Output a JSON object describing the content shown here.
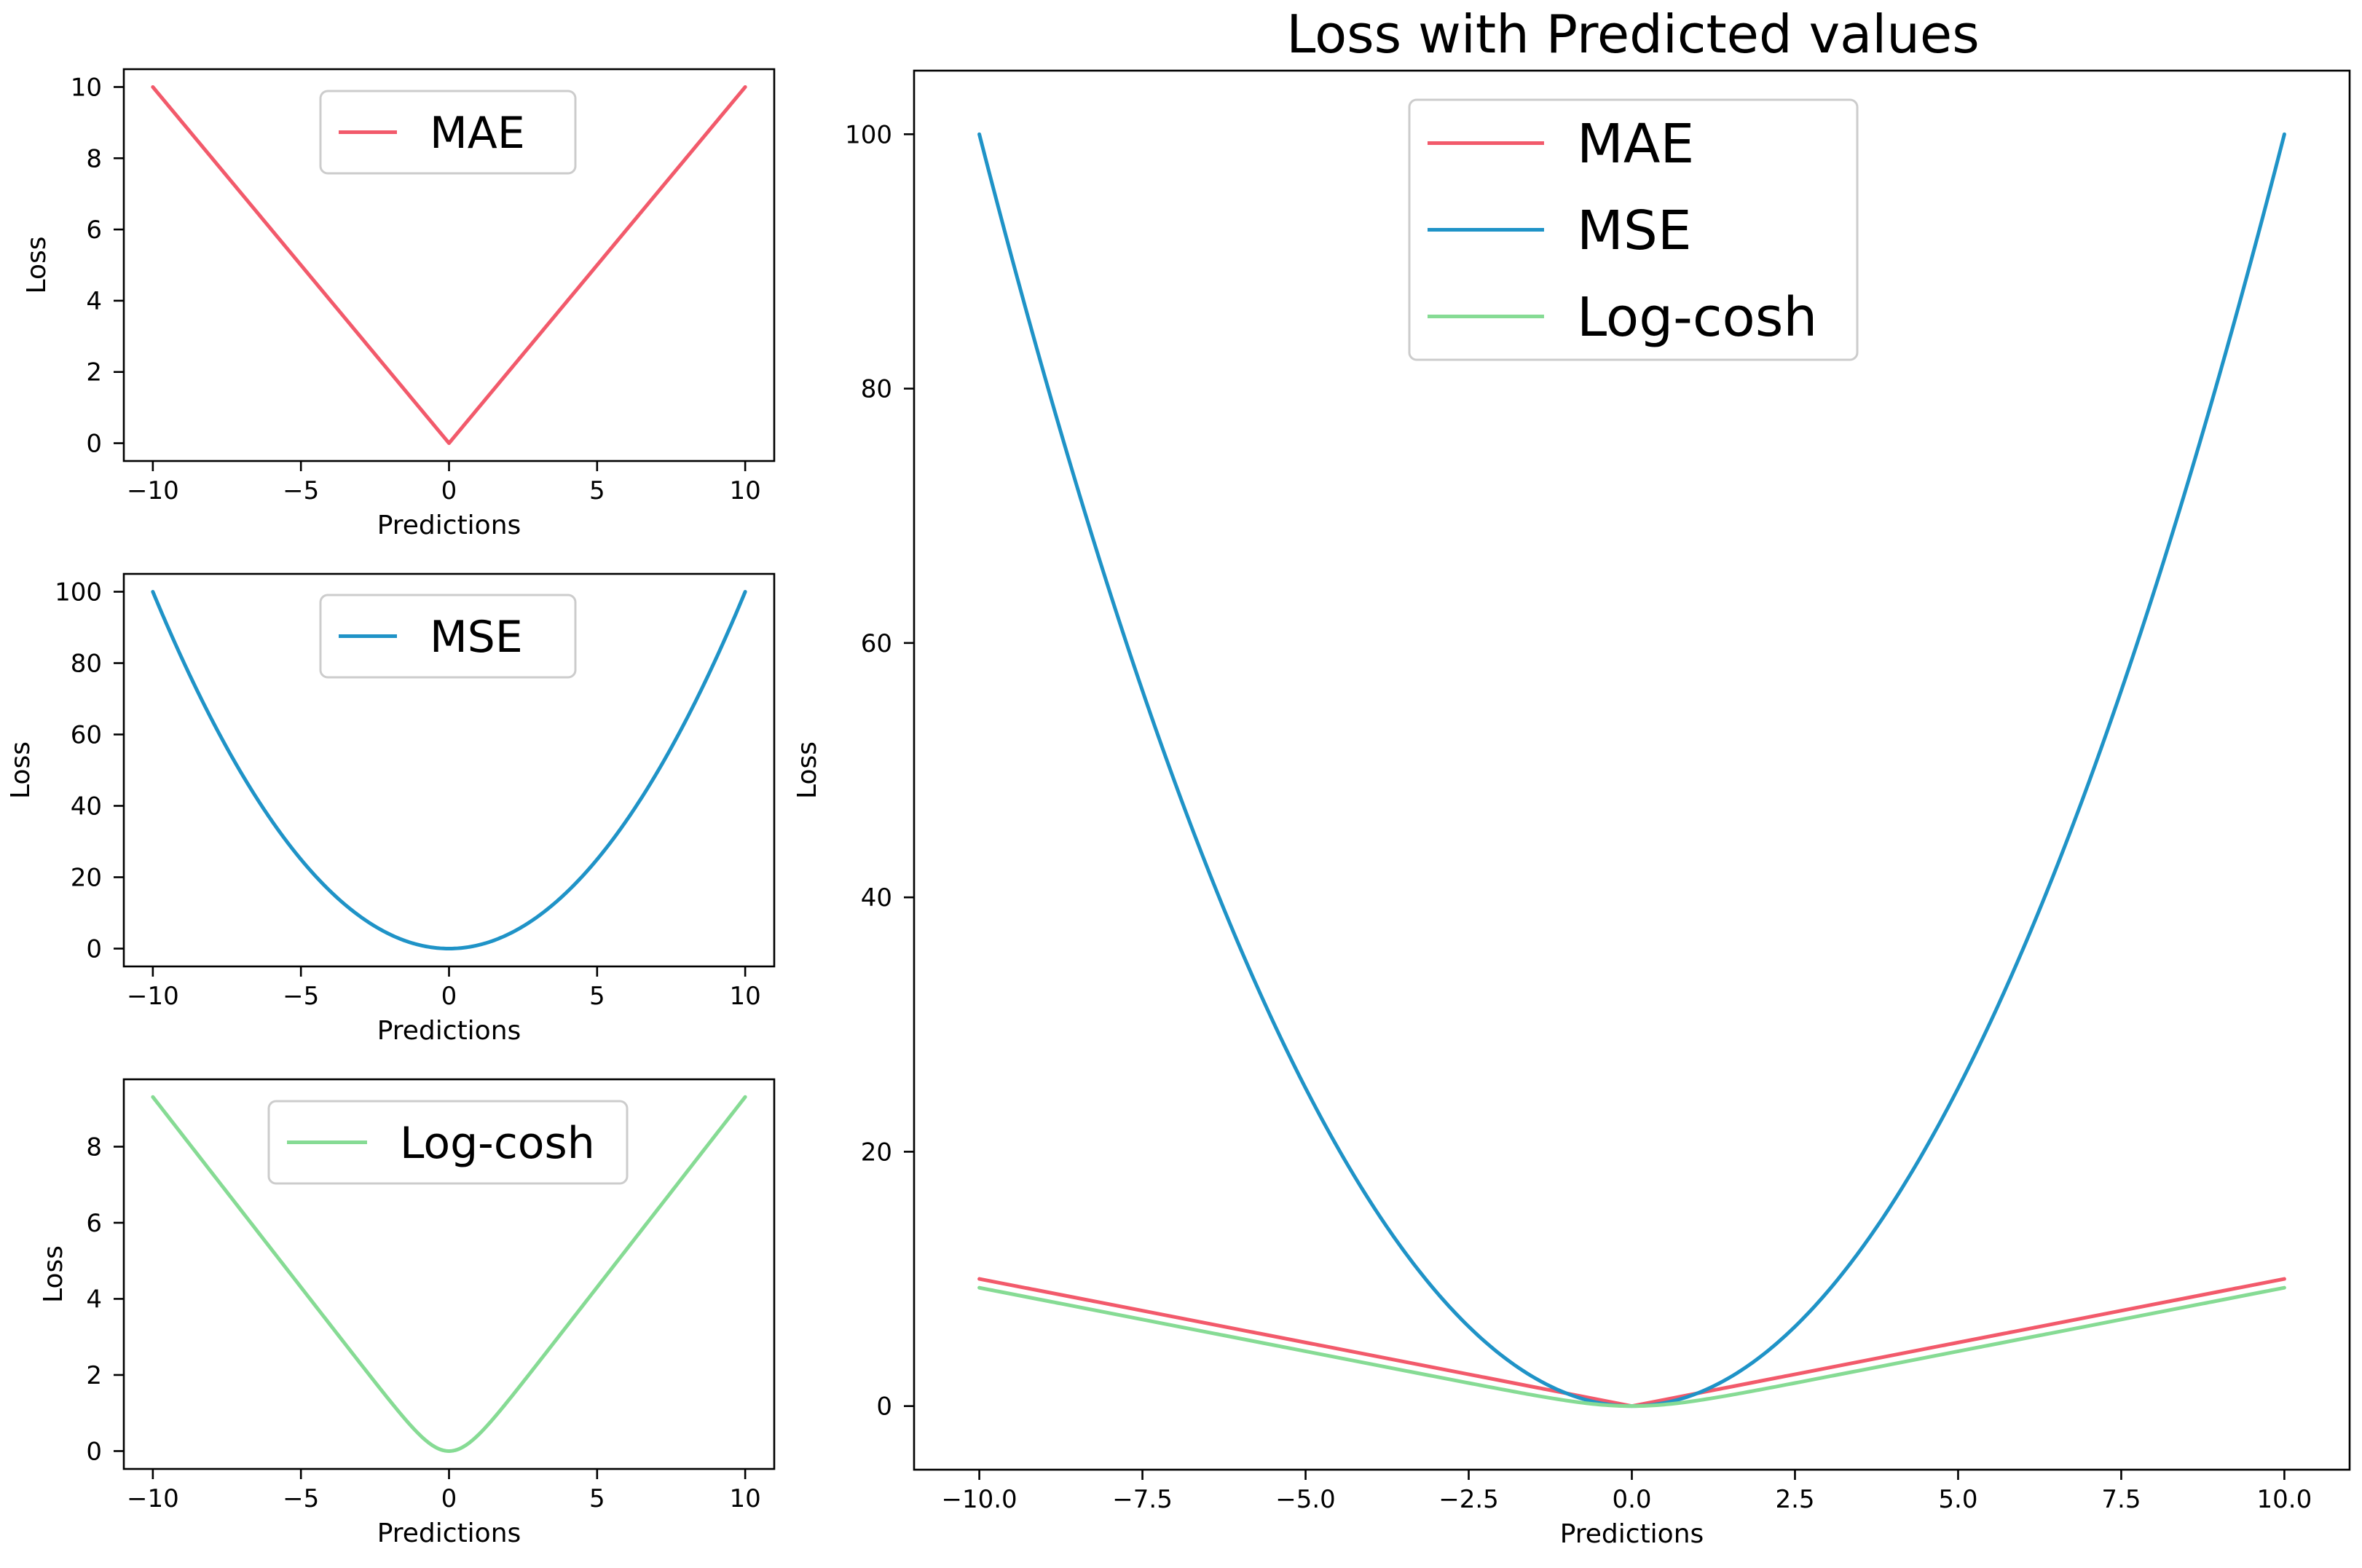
{
  "colors": {
    "mae": "#f25a6b",
    "mse": "#1f93c7",
    "logcosh": "#86db94"
  },
  "chart_data": [
    {
      "type": "line",
      "title": "",
      "xlabel": "Predictions",
      "ylabel": "Loss",
      "xlim": [
        -10.98,
        10.98
      ],
      "ylim": [
        -0.5,
        10.5
      ],
      "xticks": [
        -10,
        -5,
        0,
        5,
        10
      ],
      "xtick_labels": [
        "−10",
        "−5",
        "0",
        "5",
        "10"
      ],
      "yticks": [
        0,
        2,
        4,
        6,
        8,
        10
      ],
      "ytick_labels": [
        "0",
        "2",
        "4",
        "6",
        "8",
        "10"
      ],
      "legend_position": "upper-center",
      "series": [
        {
          "name": "MAE",
          "color_key": "mae",
          "function": "abs",
          "x": [
            -10,
            0,
            10
          ],
          "values": [
            10,
            0,
            10
          ]
        }
      ]
    },
    {
      "type": "line",
      "title": "",
      "xlabel": "Predictions",
      "ylabel": "Loss",
      "xlim": [
        -10.98,
        10.98
      ],
      "ylim": [
        -5,
        105
      ],
      "xticks": [
        -10,
        -5,
        0,
        5,
        10
      ],
      "xtick_labels": [
        "−10",
        "−5",
        "0",
        "5",
        "10"
      ],
      "yticks": [
        0,
        20,
        40,
        60,
        80,
        100
      ],
      "ytick_labels": [
        "0",
        "20",
        "40",
        "60",
        "80",
        "100"
      ],
      "legend_position": "upper-center",
      "series": [
        {
          "name": "MSE",
          "color_key": "mse",
          "function": "square",
          "x": [
            -10,
            -5,
            0,
            5,
            10
          ],
          "values": [
            100,
            25,
            0,
            25,
            100
          ]
        }
      ]
    },
    {
      "type": "line",
      "title": "",
      "xlabel": "Predictions",
      "ylabel": "Loss",
      "xlim": [
        -10.98,
        10.98
      ],
      "ylim": [
        -0.47,
        9.77
      ],
      "xticks": [
        -10,
        -5,
        0,
        5,
        10
      ],
      "xtick_labels": [
        "−10",
        "−5",
        "0",
        "5",
        "10"
      ],
      "yticks": [
        0,
        2,
        4,
        6,
        8
      ],
      "ytick_labels": [
        "0",
        "2",
        "4",
        "6",
        "8"
      ],
      "legend_position": "upper-center",
      "series": [
        {
          "name": "Log-cosh",
          "color_key": "logcosh",
          "function": "logcosh",
          "x": [
            -10,
            -5,
            0,
            5,
            10
          ],
          "values": [
            9.31,
            4.31,
            0,
            4.31,
            9.31
          ]
        }
      ]
    },
    {
      "type": "line",
      "title": "Loss with Predicted values",
      "xlabel": "Predictions",
      "ylabel": "Loss",
      "xlim": [
        -11,
        11
      ],
      "ylim": [
        -5,
        105
      ],
      "xticks": [
        -10,
        -7.5,
        -5,
        -2.5,
        0,
        2.5,
        5,
        7.5,
        10
      ],
      "xtick_labels": [
        "−10.0",
        "−7.5",
        "−5.0",
        "−2.5",
        "0.0",
        "2.5",
        "5.0",
        "7.5",
        "10.0"
      ],
      "yticks": [
        0,
        20,
        40,
        60,
        80,
        100
      ],
      "ytick_labels": [
        "0",
        "20",
        "40",
        "60",
        "80",
        "100"
      ],
      "legend_position": "upper-center",
      "series": [
        {
          "name": "MAE",
          "color_key": "mae",
          "function": "abs",
          "x": [
            -10,
            0,
            10
          ],
          "values": [
            10,
            0,
            10
          ]
        },
        {
          "name": "MSE",
          "color_key": "mse",
          "function": "square",
          "x": [
            -10,
            -5,
            0,
            5,
            10
          ],
          "values": [
            100,
            25,
            0,
            25,
            100
          ]
        },
        {
          "name": "Log-cosh",
          "color_key": "logcosh",
          "function": "logcosh",
          "x": [
            -10,
            -5,
            0,
            5,
            10
          ],
          "values": [
            9.31,
            4.31,
            0,
            4.31,
            9.31
          ]
        }
      ]
    }
  ]
}
